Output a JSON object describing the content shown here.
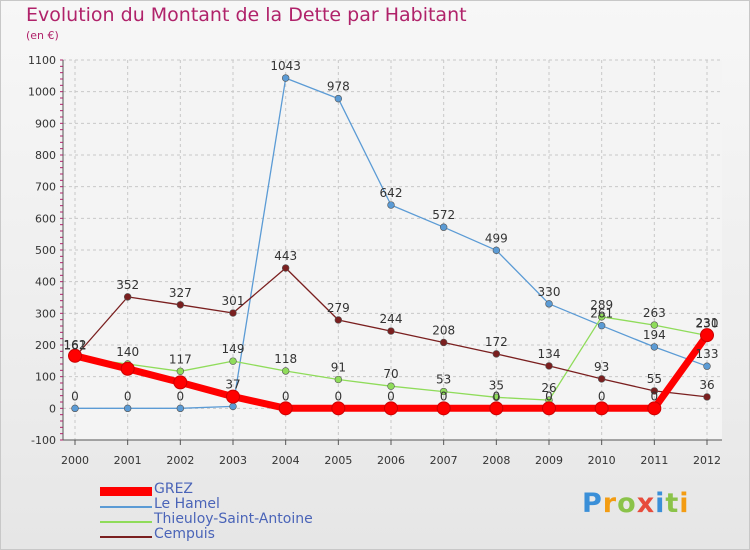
{
  "title": "Evolution du Montant de la Dette par Habitant",
  "unit_label": "(en €)",
  "logo_text": "Proxiti",
  "colors": {
    "title": "#b0226a",
    "legend_text": "#4a64b8",
    "axis": "#333333",
    "grid": "#c8c8c8"
  },
  "chart_data": {
    "type": "line",
    "title": "Evolution du Montant de la Dette par Habitant",
    "subtitle": "(en €)",
    "x": [
      "2000",
      "2001",
      "2002",
      "2003",
      "2004",
      "2005",
      "2006",
      "2007",
      "2008",
      "2009",
      "2010",
      "2011",
      "2012"
    ],
    "ylim": [
      -100,
      1100
    ],
    "yticks": [
      -100,
      0,
      100,
      200,
      300,
      400,
      500,
      600,
      700,
      800,
      900,
      1000,
      1100
    ],
    "grid": true,
    "legend_position": "bottom-left",
    "series": [
      {
        "name": "GREZ",
        "color": "#ff0000",
        "values": [
          166,
          125,
          82,
          37,
          0,
          0,
          0,
          0,
          0,
          0,
          0,
          0,
          231
        ],
        "labels": [
          "",
          "",
          "",
          "37",
          "0",
          "0",
          "0",
          "0",
          "0",
          "0",
          "0",
          "0",
          "231"
        ]
      },
      {
        "name": "Le Hamel",
        "color": "#5b9bd5",
        "values": [
          0,
          0,
          0,
          6,
          1043,
          978,
          642,
          572,
          499,
          330,
          261,
          194,
          133
        ],
        "labels": [
          "0",
          "0",
          "0",
          "",
          "1043",
          "978",
          "642",
          "572",
          "499",
          "330",
          "261",
          "194",
          "133"
        ]
      },
      {
        "name": "Thieuloy-Saint-Antoine",
        "color": "#8fdc5a",
        "values": [
          161,
          140,
          117,
          149,
          118,
          91,
          70,
          53,
          35,
          26,
          289,
          263,
          230
        ],
        "labels": [
          "161",
          "140",
          "117",
          "149",
          "118",
          "91",
          "70",
          "53",
          "35",
          "26",
          "289",
          "263",
          "230"
        ]
      },
      {
        "name": "Cempuis",
        "color": "#7a1f1f",
        "values": [
          162,
          352,
          327,
          301,
          443,
          279,
          244,
          208,
          172,
          134,
          93,
          55,
          36
        ],
        "labels": [
          "162",
          "352",
          "327",
          "301",
          "443",
          "279",
          "244",
          "208",
          "172",
          "134",
          "93",
          "55",
          "36"
        ]
      }
    ]
  }
}
